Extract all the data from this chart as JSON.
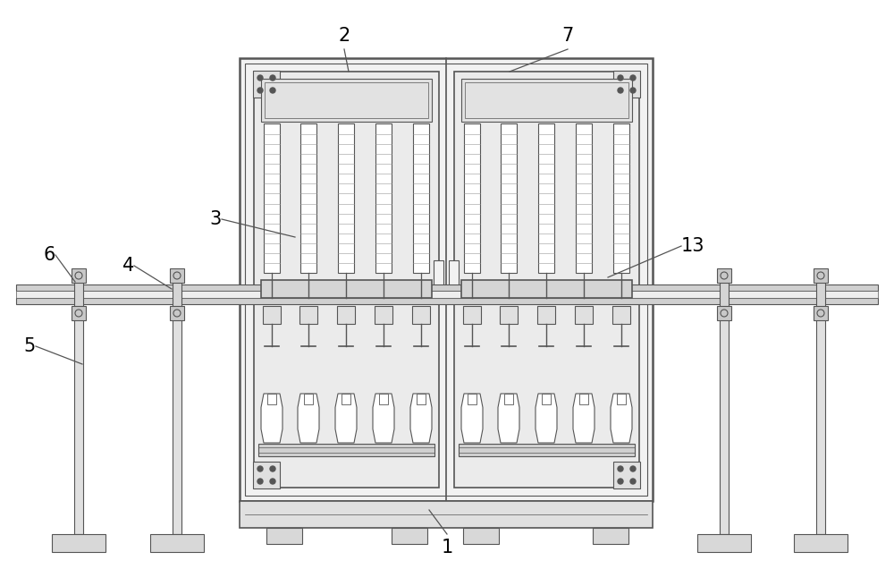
{
  "bg_color": "#ffffff",
  "lc": "#555555",
  "lc_dark": "#333333",
  "fill_outer": "#f2f2f2",
  "fill_inner": "#ebebeb",
  "fill_gray": "#d8d8d8",
  "fill_white": "#ffffff",
  "figsize": [
    10.0,
    6.55
  ],
  "dpi": 100
}
